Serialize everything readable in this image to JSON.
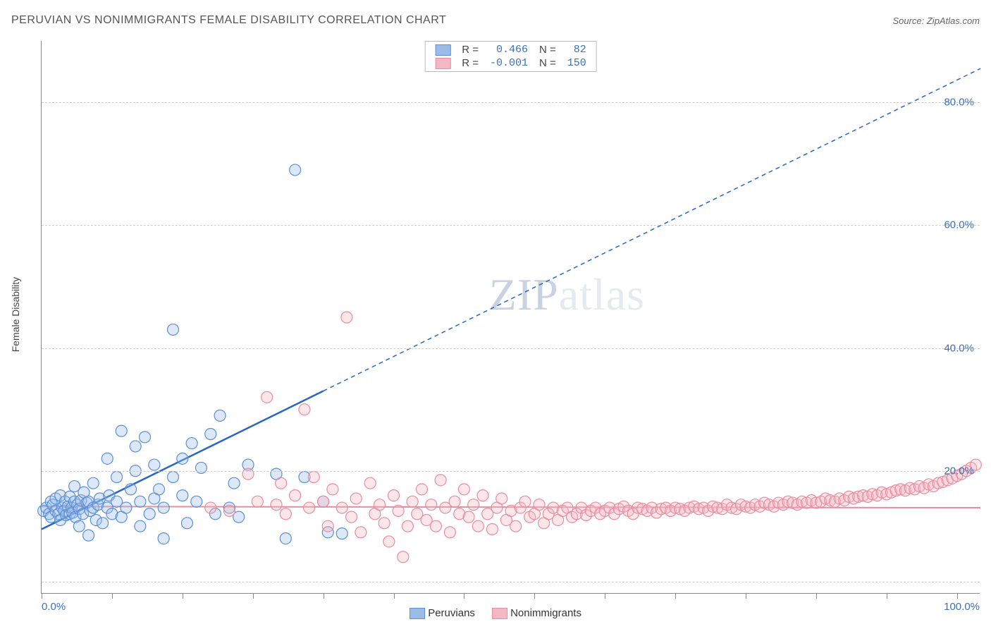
{
  "title": "PERUVIAN VS NONIMMIGRANTS FEMALE DISABILITY CORRELATION CHART",
  "source_label": "Source: ZipAtlas.com",
  "ylabel": "Female Disability",
  "watermark": {
    "zip": "ZIP",
    "atlas": "atlas"
  },
  "chart": {
    "type": "scatter",
    "background_color": "#ffffff",
    "grid_color": "#cccccc",
    "axis_color": "#888888",
    "xlim": [
      0,
      100
    ],
    "ylim": [
      0,
      90
    ],
    "x_ticks_minor_step": 7.5,
    "y_gridlines": [
      2,
      20,
      40,
      60,
      80
    ],
    "y_tick_labels": [
      {
        "value": 20,
        "label": "20.0%"
      },
      {
        "value": 40,
        "label": "40.0%"
      },
      {
        "value": 60,
        "label": "60.0%"
      },
      {
        "value": 80,
        "label": "80.0%"
      }
    ],
    "x_tick_labels": [
      {
        "value": 0,
        "label": "0.0%"
      },
      {
        "value": 100,
        "label": "100.0%"
      }
    ],
    "marker_radius": 8,
    "marker_stroke_width": 1.2,
    "marker_fill_opacity": 0.35,
    "series": [
      {
        "name": "Peruvians",
        "fill_color": "#9cbce8",
        "stroke_color": "#5b8fd6",
        "points": [
          [
            0.2,
            13.5
          ],
          [
            0.5,
            14
          ],
          [
            0.8,
            13
          ],
          [
            1,
            15
          ],
          [
            1,
            12.5
          ],
          [
            1.2,
            14.5
          ],
          [
            1.5,
            13.5
          ],
          [
            1.5,
            15.5
          ],
          [
            1.8,
            13
          ],
          [
            2,
            16
          ],
          [
            2,
            12
          ],
          [
            2.2,
            14
          ],
          [
            2.4,
            13.5
          ],
          [
            2.5,
            15
          ],
          [
            2.6,
            12.8
          ],
          [
            2.8,
            14.2
          ],
          [
            3,
            13
          ],
          [
            3,
            15.8
          ],
          [
            3.2,
            14
          ],
          [
            3.3,
            13.2
          ],
          [
            3.5,
            15
          ],
          [
            3.5,
            17.5
          ],
          [
            3.6,
            12.5
          ],
          [
            3.8,
            14.5
          ],
          [
            4,
            13.8
          ],
          [
            4,
            11
          ],
          [
            4.2,
            15.2
          ],
          [
            4.4,
            13
          ],
          [
            4.5,
            16.5
          ],
          [
            4.8,
            14.8
          ],
          [
            5,
            15
          ],
          [
            5,
            9.5
          ],
          [
            5.2,
            13.5
          ],
          [
            5.5,
            14
          ],
          [
            5.5,
            18
          ],
          [
            5.8,
            12
          ],
          [
            6,
            14.5
          ],
          [
            6.2,
            15.5
          ],
          [
            6.5,
            11.5
          ],
          [
            7,
            14
          ],
          [
            7,
            22
          ],
          [
            7.2,
            16
          ],
          [
            7.5,
            13
          ],
          [
            8,
            15
          ],
          [
            8,
            19
          ],
          [
            8.5,
            12.5
          ],
          [
            8.5,
            26.5
          ],
          [
            9,
            14
          ],
          [
            9.5,
            17
          ],
          [
            10,
            20
          ],
          [
            10,
            24
          ],
          [
            10.5,
            11
          ],
          [
            10.5,
            15
          ],
          [
            11,
            25.5
          ],
          [
            11.5,
            13
          ],
          [
            12,
            15.5
          ],
          [
            12,
            21
          ],
          [
            12.5,
            17
          ],
          [
            13,
            14
          ],
          [
            13,
            9
          ],
          [
            14,
            43
          ],
          [
            14,
            19
          ],
          [
            15,
            16
          ],
          [
            15,
            22
          ],
          [
            15.5,
            11.5
          ],
          [
            16,
            24.5
          ],
          [
            16.5,
            15
          ],
          [
            17,
            20.5
          ],
          [
            18,
            26
          ],
          [
            18.5,
            13
          ],
          [
            19,
            29
          ],
          [
            20,
            14
          ],
          [
            20.5,
            18
          ],
          [
            21,
            12.5
          ],
          [
            22,
            21
          ],
          [
            25,
            19.5
          ],
          [
            26,
            9
          ],
          [
            27,
            69
          ],
          [
            28,
            19
          ],
          [
            30,
            15
          ],
          [
            30.5,
            10
          ],
          [
            32,
            9.8
          ]
        ],
        "trendline": {
          "color": "#2766c4",
          "solid_width": 2.5,
          "dashed_width": 1.5,
          "dash": "6,5",
          "x1": 0,
          "y1": 10.5,
          "x_break": 30,
          "y_break": 33,
          "x2": 100,
          "y2": 85.5
        },
        "stats": {
          "R": "0.466",
          "N": "82"
        }
      },
      {
        "name": "Nonimmigrants",
        "fill_color": "#f4b8c4",
        "stroke_color": "#e88ca0",
        "points": [
          [
            18,
            14
          ],
          [
            20,
            13.5
          ],
          [
            22,
            19.5
          ],
          [
            23,
            15
          ],
          [
            24,
            32
          ],
          [
            25,
            14.5
          ],
          [
            25.5,
            18
          ],
          [
            26,
            13
          ],
          [
            27,
            16
          ],
          [
            28,
            30
          ],
          [
            28.5,
            14
          ],
          [
            29,
            19
          ],
          [
            30,
            15
          ],
          [
            30.5,
            11
          ],
          [
            31,
            17
          ],
          [
            32,
            14
          ],
          [
            32.5,
            45
          ],
          [
            33,
            12.5
          ],
          [
            33.5,
            15.5
          ],
          [
            34,
            10
          ],
          [
            35,
            18
          ],
          [
            35.5,
            13
          ],
          [
            36,
            14.5
          ],
          [
            36.5,
            11.5
          ],
          [
            37,
            8.5
          ],
          [
            37.5,
            16
          ],
          [
            38,
            13.5
          ],
          [
            38.5,
            6
          ],
          [
            39,
            11
          ],
          [
            39.5,
            15
          ],
          [
            40,
            13
          ],
          [
            40.5,
            17
          ],
          [
            41,
            12
          ],
          [
            41.5,
            14.5
          ],
          [
            42,
            11
          ],
          [
            42.5,
            18.5
          ],
          [
            43,
            14
          ],
          [
            43.5,
            10
          ],
          [
            44,
            15
          ],
          [
            44.5,
            13
          ],
          [
            45,
            17
          ],
          [
            45.5,
            12.5
          ],
          [
            46,
            14.5
          ],
          [
            46.5,
            11
          ],
          [
            47,
            16
          ],
          [
            47.5,
            13
          ],
          [
            48,
            10.5
          ],
          [
            48.5,
            14
          ],
          [
            49,
            15.5
          ],
          [
            49.5,
            12
          ],
          [
            50,
            13.5
          ],
          [
            50.5,
            11
          ],
          [
            51,
            14
          ],
          [
            51.5,
            15
          ],
          [
            52,
            12.5
          ],
          [
            52.5,
            13
          ],
          [
            53,
            14.5
          ],
          [
            53.5,
            11.5
          ],
          [
            54,
            13
          ],
          [
            54.5,
            14
          ],
          [
            55,
            12
          ],
          [
            55.5,
            13.5
          ],
          [
            56,
            14
          ],
          [
            56.5,
            12.5
          ],
          [
            57,
            13
          ],
          [
            57.5,
            14
          ],
          [
            58,
            12.8
          ],
          [
            58.5,
            13.5
          ],
          [
            59,
            14
          ],
          [
            59.5,
            13
          ],
          [
            60,
            13.5
          ],
          [
            60.5,
            14
          ],
          [
            61,
            13
          ],
          [
            61.5,
            13.8
          ],
          [
            62,
            14.2
          ],
          [
            62.5,
            13.5
          ],
          [
            63,
            13
          ],
          [
            63.5,
            14
          ],
          [
            64,
            13.8
          ],
          [
            64.5,
            13.5
          ],
          [
            65,
            14
          ],
          [
            65.5,
            13.2
          ],
          [
            66,
            13.8
          ],
          [
            66.5,
            14
          ],
          [
            67,
            13.5
          ],
          [
            67.5,
            14
          ],
          [
            68,
            13.8
          ],
          [
            68.5,
            13.5
          ],
          [
            69,
            14
          ],
          [
            69.5,
            14.2
          ],
          [
            70,
            13.8
          ],
          [
            70.5,
            14
          ],
          [
            71,
            13.5
          ],
          [
            71.5,
            14.2
          ],
          [
            72,
            14
          ],
          [
            72.5,
            13.8
          ],
          [
            73,
            14.5
          ],
          [
            73.5,
            14
          ],
          [
            74,
            13.8
          ],
          [
            74.5,
            14.5
          ],
          [
            75,
            14.2
          ],
          [
            75.5,
            14
          ],
          [
            76,
            14.5
          ],
          [
            76.5,
            14.2
          ],
          [
            77,
            14.8
          ],
          [
            77.5,
            14.5
          ],
          [
            78,
            14.2
          ],
          [
            78.5,
            14.8
          ],
          [
            79,
            14.5
          ],
          [
            79.5,
            15
          ],
          [
            80,
            14.8
          ],
          [
            80.5,
            14.5
          ],
          [
            81,
            15
          ],
          [
            81.5,
            14.8
          ],
          [
            82,
            15.2
          ],
          [
            82.5,
            14.8
          ],
          [
            83,
            15
          ],
          [
            83.5,
            15.5
          ],
          [
            84,
            15.2
          ],
          [
            84.5,
            15
          ],
          [
            85,
            15.5
          ],
          [
            85.5,
            15.2
          ],
          [
            86,
            15.8
          ],
          [
            86.5,
            15.5
          ],
          [
            87,
            15.8
          ],
          [
            87.5,
            16
          ],
          [
            88,
            15.8
          ],
          [
            88.5,
            16.2
          ],
          [
            89,
            16
          ],
          [
            89.5,
            16.5
          ],
          [
            90,
            16.2
          ],
          [
            90.5,
            16.5
          ],
          [
            91,
            16.8
          ],
          [
            91.5,
            17
          ],
          [
            92,
            16.8
          ],
          [
            92.5,
            17.2
          ],
          [
            93,
            17
          ],
          [
            93.5,
            17.5
          ],
          [
            94,
            17.2
          ],
          [
            94.5,
            17.8
          ],
          [
            95,
            17.5
          ],
          [
            95.5,
            18
          ],
          [
            96,
            18.2
          ],
          [
            96.5,
            18.5
          ],
          [
            97,
            18.8
          ],
          [
            97.5,
            19.2
          ],
          [
            98,
            19.5
          ],
          [
            98.5,
            20
          ],
          [
            99,
            20.5
          ],
          [
            99.5,
            21
          ]
        ],
        "trendline": {
          "color": "#e88ca0",
          "solid_width": 2,
          "x1": 0,
          "y1": 14.2,
          "x2": 100,
          "y2": 14.0
        },
        "stats": {
          "R": "-0.001",
          "N": "150"
        }
      }
    ],
    "legend_bottom": [
      {
        "label": "Peruvians",
        "fill": "#9cbce8",
        "stroke": "#5b8fd6"
      },
      {
        "label": "Nonimmigrants",
        "fill": "#f4b8c4",
        "stroke": "#e88ca0"
      }
    ]
  }
}
